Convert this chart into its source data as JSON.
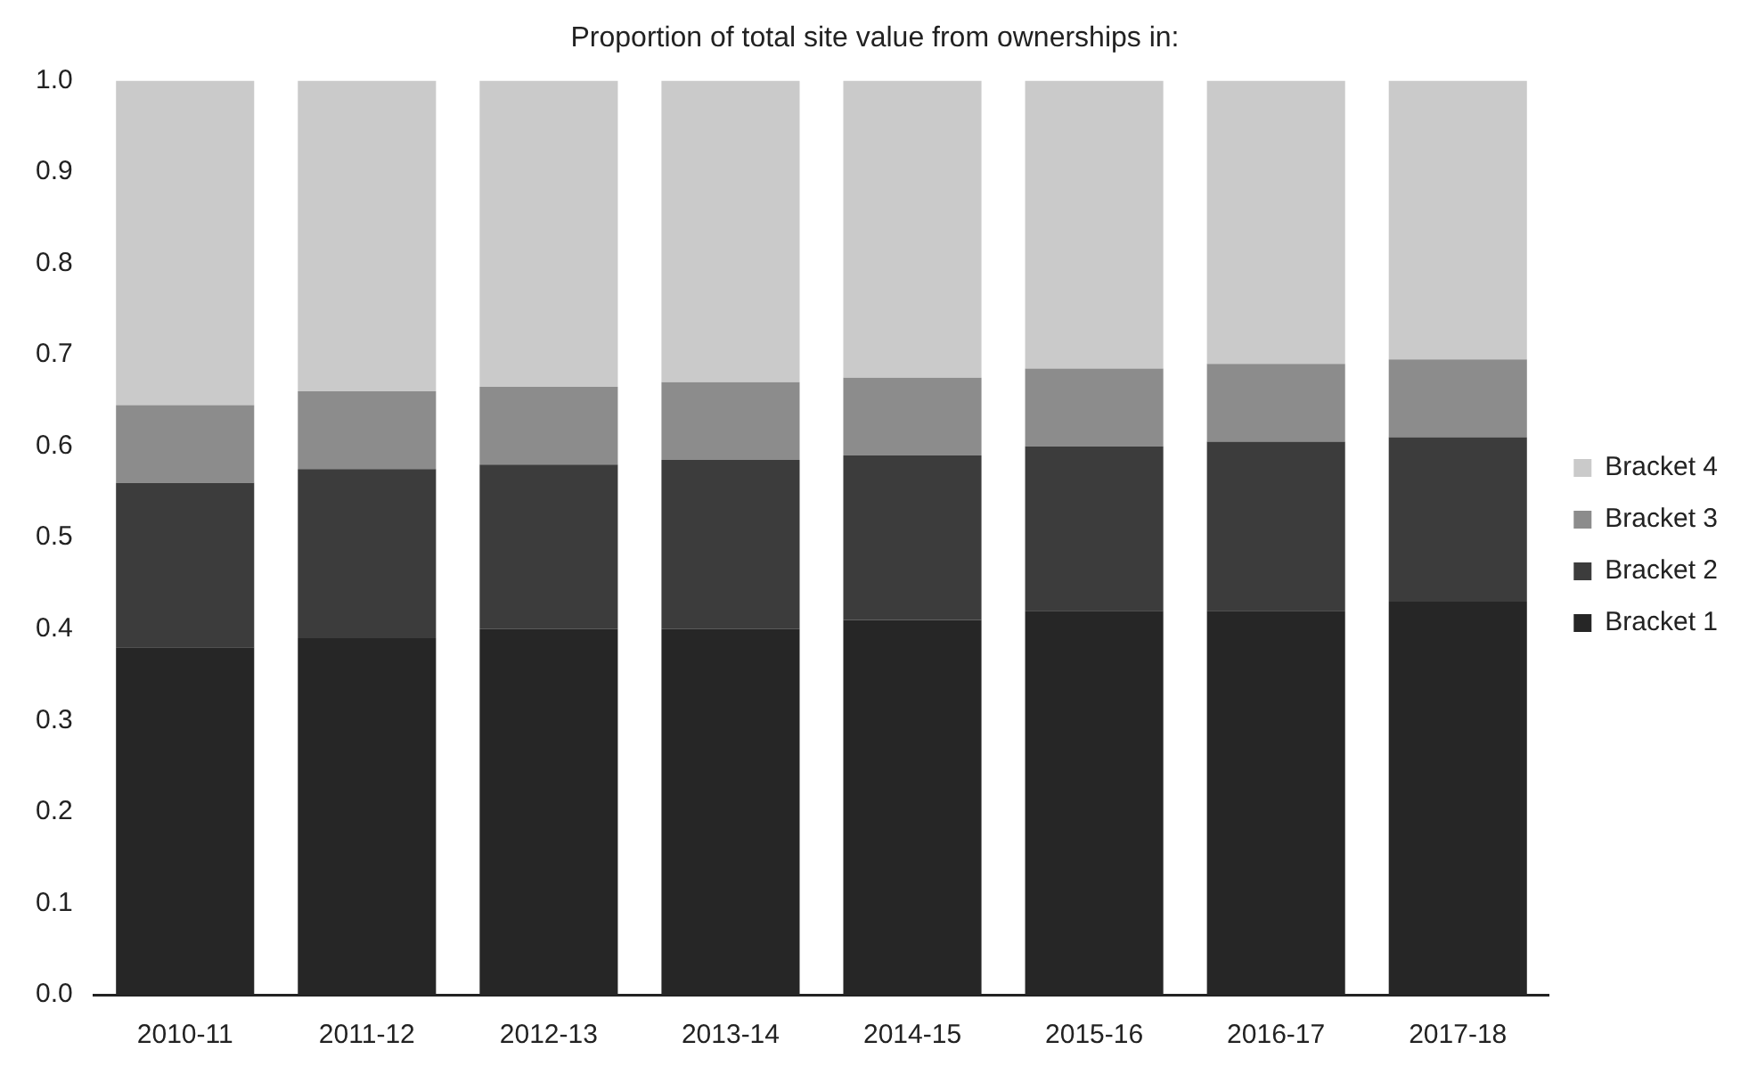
{
  "chart_data": {
    "type": "bar",
    "title": "Proportion of total site value from ownerships in:",
    "categories": [
      "2010-11",
      "2011-12",
      "2012-13",
      "2013-14",
      "2014-15",
      "2015-16",
      "2016-17",
      "2017-18"
    ],
    "stacked": true,
    "ylim": [
      0,
      1
    ],
    "yticks": [
      {
        "value": 0,
        "label": "0.0"
      },
      0.1,
      0.2,
      0.3,
      0.4,
      0.5,
      0.6,
      0.7,
      0.8,
      0.9,
      {
        "value": 1,
        "label": "1.0"
      }
    ],
    "grid": false,
    "legend": "right",
    "series": [
      {
        "name": "Bracket 1",
        "color": "#262626",
        "values": [
          0.38,
          0.39,
          0.4,
          0.4,
          0.41,
          0.42,
          0.42,
          0.43
        ]
      },
      {
        "name": "Bracket 2",
        "color": "#3c3c3c",
        "values": [
          0.18,
          0.185,
          0.18,
          0.185,
          0.18,
          0.18,
          0.185,
          0.18
        ]
      },
      {
        "name": "Bracket 3",
        "color": "#8c8c8c",
        "values": [
          0.085,
          0.085,
          0.085,
          0.085,
          0.085,
          0.085,
          0.085,
          0.085
        ]
      },
      {
        "name": "Bracket 4",
        "color": "#cacaca",
        "values": [
          0.355,
          0.34,
          0.335,
          0.33,
          0.325,
          0.315,
          0.31,
          0.305
        ]
      }
    ]
  }
}
